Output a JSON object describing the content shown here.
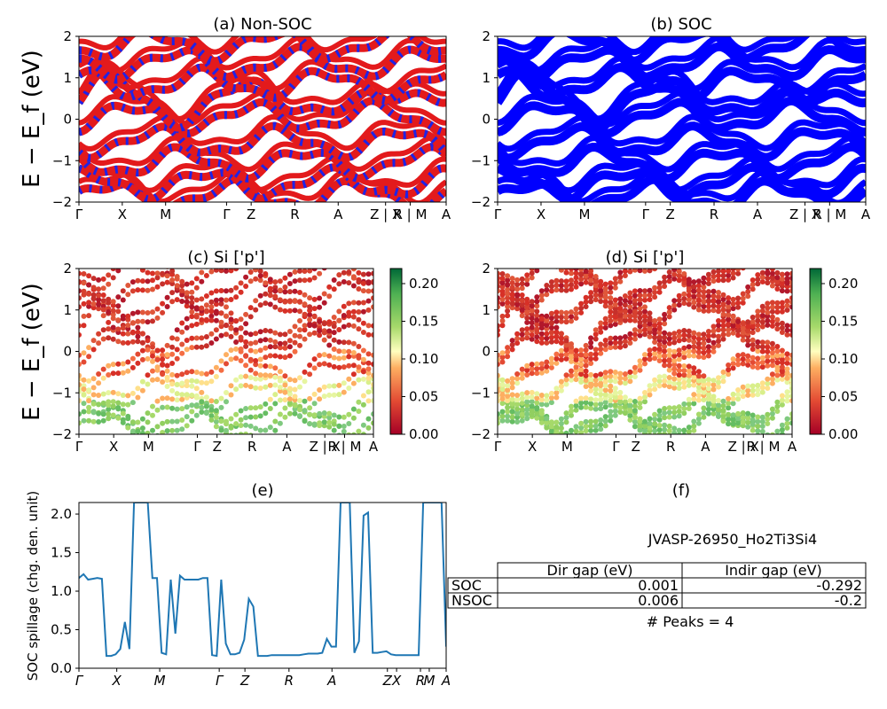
{
  "kpoints": [
    "Γ",
    "X",
    "M",
    "Γ",
    "Z",
    "R",
    "A",
    "Z | X",
    "R | M",
    "A"
  ],
  "kpoints_italic": [
    "Γ",
    "X",
    "M",
    "Γ",
    "Z",
    "R",
    "A",
    "Z",
    "X",
    "R",
    "M",
    "A"
  ],
  "energy_ticks": [
    "2",
    "1",
    "0",
    "−1",
    "−2"
  ],
  "ylabel_energy": "E − E_f (eV)",
  "cbar_ticks": [
    "0.20",
    "0.15",
    "0.10",
    "0.05",
    "0.00"
  ],
  "colors": {
    "nonsoc_red": "#e31a1c",
    "nonsoc_blue": "#1f23e6",
    "soc_blue": "#0000ff",
    "spillage_line": "#1f77b4"
  },
  "panels": {
    "a": {
      "title": "(a) Non-SOC"
    },
    "b": {
      "title": "(b) SOC"
    },
    "c": {
      "title": "(c)  Si ['p']"
    },
    "d": {
      "title": "(d) Si ['p']"
    },
    "e": {
      "title": "(e)",
      "ylabel": "SOC spillage (chg. den. unit)",
      "yticks": [
        "2.0",
        "1.5",
        "1.0",
        "0.5",
        "0.0"
      ]
    },
    "f": {
      "title": "(f)",
      "material": "JVASP-26950_Ho2Ti3Si4",
      "table": {
        "headers": [
          "Dir gap (eV)",
          "Indir gap (eV)"
        ],
        "rows": [
          {
            "label": "SOC",
            "dir": "0.001",
            "indir": "-0.292"
          },
          {
            "label": "NSOC",
            "dir": "0.006",
            "indir": "-0.2"
          }
        ]
      },
      "peaks": "# Peaks = 4"
    }
  },
  "chart_data": [
    {
      "type": "line",
      "title": "(a) Non-SOC",
      "ylabel": "E − E_f (eV)",
      "ylim": [
        -2,
        2
      ],
      "x_ticks": [
        "Γ",
        "X",
        "M",
        "Γ",
        "Z",
        "R",
        "A",
        "Z | X",
        "R | M",
        "A"
      ],
      "band_energies_at_gamma": [
        -1.85,
        -1.55,
        -1.05,
        -0.55,
        0.05,
        0.45,
        0.85,
        1.35,
        1.8
      ],
      "series": [
        {
          "name": "",
          "color": "#e31a1c"
        },
        {
          "name": "",
          "color": "#1f23e6"
        }
      ]
    },
    {
      "type": "line",
      "title": "(b) SOC",
      "ylim": [
        -2,
        2
      ],
      "x_ticks": [
        "Γ",
        "X",
        "M",
        "Γ",
        "Z",
        "R",
        "A",
        "Z | X",
        "R | M",
        "A"
      ],
      "band_energies_at_gamma": [
        -1.85,
        -1.55,
        -1.05,
        -0.55,
        0.05,
        0.45,
        0.85,
        1.35,
        1.8
      ],
      "series": [
        {
          "name": "",
          "color": "#0000ff"
        }
      ]
    },
    {
      "type": "scatter",
      "title": "(c)  Si ['p']",
      "ylabel": "E − E_f (eV)",
      "ylim": [
        -2,
        2
      ],
      "clim": [
        0,
        0.22
      ],
      "x_ticks": [
        "Γ",
        "X",
        "M",
        "Γ",
        "Z",
        "R",
        "A",
        "Z | X",
        "R | M",
        "A"
      ]
    },
    {
      "type": "scatter",
      "title": "(d) Si ['p']",
      "ylim": [
        -2,
        2
      ],
      "clim": [
        0,
        0.22
      ],
      "x_ticks": [
        "Γ",
        "X",
        "M",
        "Γ",
        "Z",
        "R",
        "A",
        "Z | X",
        "R | M",
        "A"
      ]
    },
    {
      "type": "line",
      "title": "(e)",
      "ylabel": "SOC spillage (chg. den. unit)",
      "ylim": [
        0,
        2.15
      ],
      "x_ticks": [
        "Γ",
        "X",
        "M",
        "Γ",
        "Z",
        "R",
        "A",
        "Z",
        "X",
        "R",
        "M",
        "A"
      ],
      "series": [
        {
          "name": "",
          "values": [
            1.17,
            1.22,
            1.15,
            1.16,
            1.17,
            1.16,
            0.16,
            0.16,
            0.18,
            0.25,
            0.6,
            0.25,
            2.15,
            2.15,
            2.15,
            2.15,
            1.17,
            1.17,
            0.2,
            0.18,
            1.15,
            0.45,
            1.2,
            1.15,
            1.15,
            1.15,
            1.15,
            1.17,
            1.17,
            0.17,
            0.16,
            1.15,
            0.32,
            0.18,
            0.18,
            0.2,
            0.37,
            0.9,
            0.8,
            0.16,
            0.16,
            0.16,
            0.17,
            0.17,
            0.17,
            0.17,
            0.17,
            0.17,
            0.17,
            0.18,
            0.19,
            0.19,
            0.19,
            0.2,
            0.38,
            0.28,
            0.28,
            2.15,
            2.15,
            2.15,
            0.2,
            0.35,
            1.98,
            2.02,
            0.2,
            0.2,
            0.21,
            0.22,
            0.18,
            0.17,
            0.17,
            0.17,
            0.17,
            0.17,
            0.17,
            2.15,
            2.15,
            2.15,
            2.15,
            2.15,
            0.28
          ]
        }
      ]
    }
  ]
}
